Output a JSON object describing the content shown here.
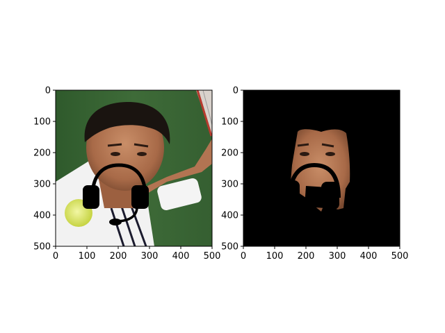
{
  "figure": {
    "panels": [
      {
        "id": "left",
        "content": "photo of tennis player with a black headset icon drawn over the face",
        "xticks": [
          "0",
          "100",
          "200",
          "300",
          "400",
          "500"
        ],
        "yticks": [
          "0",
          "100",
          "200",
          "300",
          "400",
          "500"
        ]
      },
      {
        "id": "right",
        "content": "segmentation mask: face region shown on black background, headset area masked black",
        "xticks": [
          "0",
          "100",
          "200",
          "300",
          "400",
          "500"
        ],
        "yticks": [
          "0",
          "100",
          "200",
          "300",
          "400",
          "500"
        ]
      }
    ]
  },
  "chart_data": [
    {
      "type": "image",
      "title": "",
      "xlim": [
        0,
        500
      ],
      "ylim": [
        500,
        0
      ],
      "xticks": [
        0,
        100,
        200,
        300,
        400,
        500
      ],
      "yticks": [
        0,
        100,
        200,
        300,
        400,
        500
      ]
    },
    {
      "type": "image",
      "title": "",
      "xlim": [
        0,
        500
      ],
      "ylim": [
        500,
        0
      ],
      "xticks": [
        0,
        100,
        200,
        300,
        400,
        500
      ],
      "yticks": [
        0,
        100,
        200,
        300,
        400,
        500
      ]
    }
  ]
}
